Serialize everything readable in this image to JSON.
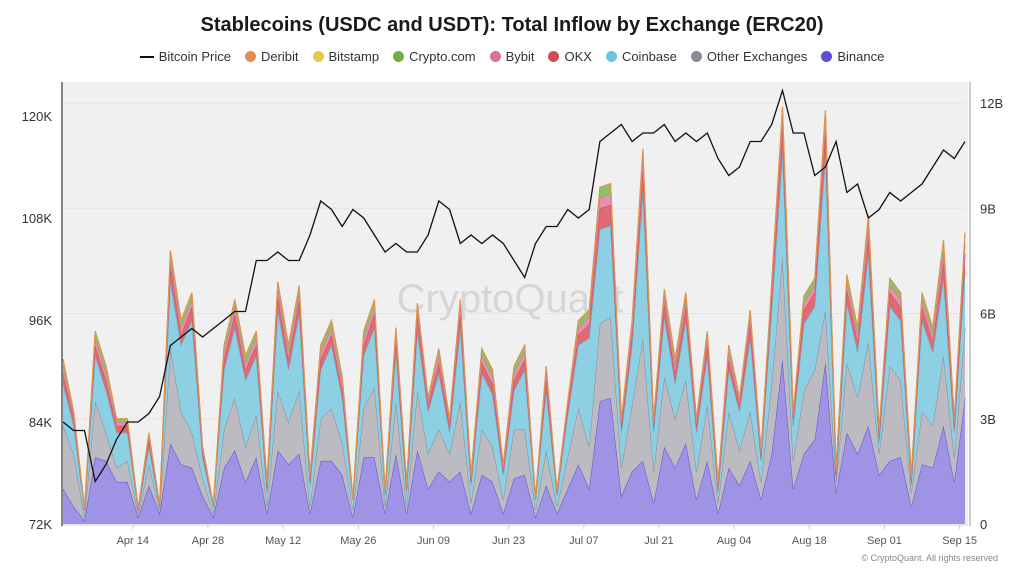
{
  "chart_data": {
    "type": "area",
    "title": "Stablecoins (USDC and USDT): Total Inflow by Exchange (ERC20)",
    "x_start": "Apr 01",
    "x_step_days": 2,
    "x_ticks": [
      {
        "label": "Apr 14",
        "day": 13
      },
      {
        "label": "Apr 28",
        "day": 27
      },
      {
        "label": "May 12",
        "day": 41
      },
      {
        "label": "May 26",
        "day": 55
      },
      {
        "label": "Jun 09",
        "day": 69
      },
      {
        "label": "Jun 23",
        "day": 83
      },
      {
        "label": "Jul 07",
        "day": 97
      },
      {
        "label": "Jul 21",
        "day": 111
      },
      {
        "label": "Aug 04",
        "day": 125
      },
      {
        "label": "Aug 18",
        "day": 139
      },
      {
        "label": "Sep 01",
        "day": 153
      },
      {
        "label": "Sep 15",
        "day": 167
      }
    ],
    "x_range_days": [
      0,
      168
    ],
    "left_axis": {
      "label": "Bitcoin Price",
      "unit": "K USD",
      "range": [
        72,
        124
      ],
      "ticks": [
        {
          "v": 72,
          "label": "72K"
        },
        {
          "v": 84,
          "label": "84K"
        },
        {
          "v": 96,
          "label": "96K"
        },
        {
          "v": 108,
          "label": "108K"
        },
        {
          "v": 120,
          "label": "120K"
        }
      ]
    },
    "right_axis": {
      "label": "Inflow",
      "unit": "B USD",
      "range": [
        0,
        12.6
      ],
      "ticks": [
        {
          "v": 0,
          "label": "0"
        },
        {
          "v": 3,
          "label": "3B"
        },
        {
          "v": 6,
          "label": "6B"
        },
        {
          "v": 9,
          "label": "9B"
        },
        {
          "v": 12,
          "label": "12B"
        }
      ]
    },
    "grid": true,
    "legend_position": "top-center",
    "legend": [
      "Bitcoin Price",
      "Deribit",
      "Bitstamp",
      "Crypto.com",
      "Bybit",
      "OKX",
      "Coinbase",
      "Other Exchanges",
      "Binance"
    ],
    "bitcoin_price": {
      "name": "Bitcoin Price",
      "color": "#111111",
      "values": [
        84,
        83,
        83,
        77,
        79,
        82,
        84,
        84,
        85,
        87,
        93,
        94,
        95,
        94,
        95,
        96,
        97,
        97,
        103,
        103,
        104,
        103,
        103,
        106,
        110,
        109,
        107,
        109,
        108,
        106,
        104,
        105,
        104,
        104,
        106,
        110,
        109,
        105,
        106,
        105,
        106,
        105,
        103,
        101,
        105,
        107,
        107,
        109,
        108,
        109,
        117,
        118,
        119,
        117,
        118,
        118,
        119,
        117,
        118,
        117,
        118,
        115,
        113,
        114,
        117,
        117,
        119,
        123,
        118,
        118,
        113,
        114,
        117,
        111,
        112,
        108,
        109,
        111,
        110,
        111,
        112,
        114,
        116,
        115,
        117
      ]
    },
    "series": [
      {
        "name": "Binance",
        "color": "#5b4fd6",
        "fill": "#9e93e4",
        "values": [
          1.0,
          0.5,
          0.1,
          1.9,
          1.8,
          1.2,
          1.2,
          0.2,
          1.1,
          0.3,
          2.3,
          1.7,
          1.6,
          0.8,
          0.2,
          1.6,
          2.1,
          1.2,
          1.9,
          0.3,
          2.1,
          1.7,
          2.0,
          0.3,
          1.8,
          1.8,
          1.4,
          0.2,
          1.9,
          1.9,
          0.3,
          2.0,
          0.3,
          2.1,
          1.0,
          1.5,
          1.2,
          1.5,
          0.3,
          1.4,
          1.2,
          0.3,
          1.3,
          1.4,
          0.2,
          1.1,
          0.3,
          1.0,
          1.7,
          1.0,
          3.5,
          3.6,
          0.8,
          1.5,
          1.8,
          0.6,
          2.2,
          1.6,
          2.3,
          0.7,
          1.8,
          0.3,
          1.6,
          1.1,
          1.8,
          0.7,
          2.0,
          4.7,
          1.0,
          2.0,
          2.4,
          4.6,
          0.9,
          2.6,
          2.0,
          2.8,
          1.4,
          1.8,
          1.9,
          0.5,
          1.7,
          1.6,
          2.8,
          1.2,
          3.6
        ]
      },
      {
        "name": "Other Exchanges",
        "color": "#8a8a96",
        "fill": "#bcbbc1",
        "values": [
          1.8,
          1.5,
          0.1,
          1.6,
          0.8,
          0.4,
          0.6,
          0.1,
          0.6,
          0.1,
          2.7,
          1.5,
          1.0,
          0.5,
          0.1,
          1.1,
          1.5,
          1.0,
          1.2,
          0.2,
          1.7,
          1.2,
          1.8,
          0.2,
          1.2,
          1.5,
          0.9,
          0.2,
          1.4,
          2.0,
          0.2,
          1.5,
          0.2,
          1.7,
          1.0,
          1.2,
          0.8,
          2.0,
          0.3,
          1.3,
          1.0,
          0.4,
          1.4,
          1.3,
          0.2,
          1.0,
          0.2,
          0.9,
          1.6,
          1.2,
          2.2,
          2.3,
          0.8,
          1.9,
          3.5,
          0.9,
          2.0,
          1.4,
          1.8,
          0.8,
          1.6,
          0.3,
          1.6,
          1.0,
          1.4,
          0.5,
          2.0,
          2.9,
          0.8,
          1.8,
          2.0,
          1.5,
          0.3,
          2.0,
          1.6,
          2.4,
          0.6,
          2.7,
          2.2,
          0.4,
          1.5,
          1.2,
          2.0,
          0.7,
          2.0
        ]
      },
      {
        "name": "Coinbase",
        "color": "#5fb8d6",
        "fill": "#8dcfe3",
        "values": [
          1.2,
          0.8,
          0.2,
          1.3,
          1.2,
          1.0,
          0.8,
          0.1,
          0.5,
          0.1,
          1.9,
          1.9,
          3.2,
          0.6,
          0.2,
          1.7,
          2.0,
          1.9,
          1.7,
          0.4,
          2.3,
          1.5,
          2.2,
          0.6,
          1.4,
          1.8,
          1.3,
          0.3,
          1.5,
          1.7,
          0.3,
          1.4,
          0.4,
          1.7,
          1.2,
          1.6,
          0.6,
          2.1,
          0.5,
          1.6,
          1.5,
          0.7,
          1.1,
          1.7,
          0.3,
          1.7,
          0.3,
          1.2,
          1.8,
          3.1,
          2.7,
          2.6,
          1.0,
          1.7,
          4.2,
          1.1,
          1.7,
          1.0,
          1.7,
          1.1,
          1.4,
          0.3,
          1.2,
          1.1,
          2.1,
          0.6,
          2.1,
          3.0,
          1.0,
          1.9,
          1.8,
          4.4,
          0.1,
          1.7,
          1.3,
          2.5,
          0.3,
          1.7,
          1.7,
          0.2,
          2.6,
          2.1,
          2.2,
          0.7,
          1.6
        ]
      },
      {
        "name": "OKX",
        "color": "#d24b57",
        "fill": "#dd6b74",
        "values": [
          0.3,
          0.2,
          0,
          0.3,
          0.3,
          0.2,
          0.2,
          0,
          0.2,
          0,
          0.5,
          0.3,
          0.4,
          0.1,
          0,
          0.3,
          0.4,
          0.3,
          0.3,
          0.1,
          0.4,
          0.3,
          0.4,
          0.1,
          0.3,
          0.3,
          0.2,
          0,
          0.3,
          0.4,
          0.1,
          0.3,
          0.1,
          0.4,
          0.2,
          0.3,
          0.2,
          0.4,
          0.1,
          0.3,
          0.3,
          0.1,
          0.3,
          0.3,
          0,
          0.3,
          0.1,
          0.2,
          0.3,
          0.4,
          0.6,
          0.6,
          0.2,
          0.3,
          0.6,
          0.2,
          0.4,
          0.3,
          0.4,
          0.2,
          0.3,
          0.1,
          0.3,
          0.2,
          0.4,
          0.1,
          0.4,
          0.7,
          0.2,
          0.4,
          0.4,
          0.7,
          0.1,
          0.4,
          0.3,
          0.5,
          0.2,
          0.4,
          0.4,
          0.1,
          0.4,
          0.3,
          0.5,
          0.2,
          0.5
        ]
      },
      {
        "name": "Bybit",
        "color": "#d9709a",
        "fill": "#e593b4",
        "values": [
          0.2,
          0.1,
          0.03,
          0.2,
          0.2,
          0.1,
          0.1,
          0.03,
          0.1,
          0.03,
          0.2,
          0.2,
          0.2,
          0.1,
          0.03,
          0.2,
          0.2,
          0.2,
          0.2,
          0.1,
          0.2,
          0.2,
          0.2,
          0.1,
          0.2,
          0.2,
          0.2,
          0.03,
          0.2,
          0.2,
          0.03,
          0.2,
          0.1,
          0.2,
          0.1,
          0.2,
          0.1,
          0.2,
          0.1,
          0.2,
          0.2,
          0.1,
          0.2,
          0.2,
          0.03,
          0.2,
          0.03,
          0.1,
          0.2,
          0.2,
          0.3,
          0.3,
          0.1,
          0.2,
          0.3,
          0.1,
          0.2,
          0.2,
          0.2,
          0.1,
          0.2,
          0.1,
          0.2,
          0.1,
          0.2,
          0.1,
          0.2,
          0.3,
          0.1,
          0.2,
          0.2,
          0.3,
          0.1,
          0.2,
          0.2,
          0.3,
          0.1,
          0.2,
          0.2,
          0.1,
          0.2,
          0.2,
          0.3,
          0.1,
          0.3
        ]
      },
      {
        "name": "Crypto.com",
        "color": "#6fae3f",
        "fill": "#8cc263",
        "values": [
          0.2,
          0.1,
          0.03,
          0.2,
          0.2,
          0.1,
          0.1,
          0.03,
          0.1,
          0.03,
          0.2,
          0.2,
          0.2,
          0.1,
          0.03,
          0.2,
          0.2,
          0.2,
          0.2,
          0.1,
          0.2,
          0.2,
          0.2,
          0.1,
          0.2,
          0.2,
          0.2,
          0.03,
          0.2,
          0.2,
          0.03,
          0.2,
          0.1,
          0.2,
          0.1,
          0.2,
          0.1,
          0.2,
          0.1,
          0.2,
          0.2,
          0.1,
          0.2,
          0.2,
          0.03,
          0.2,
          0.03,
          0.1,
          0.2,
          0.2,
          0.3,
          0.3,
          0.1,
          0.2,
          0.3,
          0.1,
          0.2,
          0.2,
          0.2,
          0.1,
          0.2,
          0.1,
          0.2,
          0.1,
          0.2,
          0.1,
          0.2,
          0.3,
          0.1,
          0.2,
          0.2,
          0.3,
          0.1,
          0.2,
          0.2,
          0.3,
          0.1,
          0.2,
          0.2,
          0.1,
          0.2,
          0.2,
          0.3,
          0.1,
          0.3
        ]
      },
      {
        "name": "Bitstamp",
        "color": "#e6c84a",
        "fill": "#ecd36f",
        "values": []
      },
      {
        "name": "Deribit",
        "color": "#e28d55",
        "fill": "#e9a476",
        "values": []
      }
    ],
    "watermark": "CryptoQuant",
    "copyright": "© CryptoQuant. All rights reserved"
  }
}
